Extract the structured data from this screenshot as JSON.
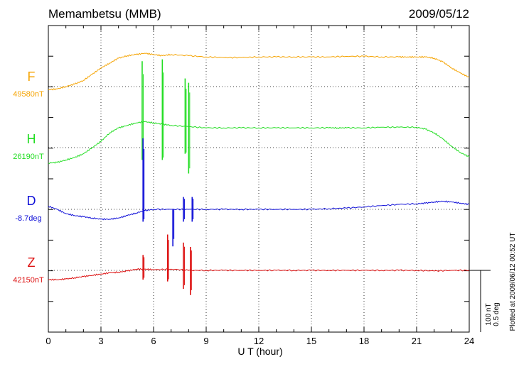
{
  "header": {
    "station": "Memambetsu (MMB)",
    "date": "2009/05/12"
  },
  "footer": {
    "plotted_at": "Plotted at 2009/06/12 00:52 UT",
    "scale_nT": "100 nT",
    "scale_deg": "0.5 deg"
  },
  "chart_data": {
    "type": "line",
    "title": "Memambetsu (MMB)",
    "date": "2009/05/12",
    "xlabel": "U T (hour)",
    "xlim": [
      0,
      24
    ],
    "xticks": [
      "0",
      "3",
      "6",
      "9",
      "12",
      "15",
      "18",
      "21",
      "24"
    ],
    "grid": true,
    "scale_bar": {
      "nT": 100,
      "deg": 0.5
    },
    "series": [
      {
        "name": "F",
        "baseline_label": "49580nT",
        "color": "#f5a300",
        "unit": "nT",
        "baseline": 49580,
        "x": [
          0,
          0.5,
          1,
          1.5,
          2,
          2.5,
          3,
          3.5,
          4,
          4.5,
          5,
          5.5,
          6,
          6.5,
          7,
          8,
          9,
          10,
          11,
          12,
          13,
          14,
          15,
          16,
          17,
          18,
          19,
          20,
          20.5,
          21,
          21.5,
          22,
          22.5,
          23,
          23.5,
          24
        ],
        "y": [
          -5,
          -4,
          0,
          4,
          10,
          20,
          30,
          38,
          46,
          50,
          52,
          54,
          52,
          50,
          52,
          50,
          48,
          47,
          47,
          48,
          48,
          48,
          48,
          48,
          49,
          49,
          48,
          48,
          48,
          48,
          48,
          46,
          40,
          30,
          22,
          15
        ],
        "spikes": []
      },
      {
        "name": "H",
        "baseline_label": "26190nT",
        "color": "#22dd22",
        "unit": "nT",
        "baseline": 26190,
        "x": [
          0,
          0.5,
          1,
          1.5,
          2,
          2.5,
          3,
          3.5,
          4,
          4.5,
          5,
          5.5,
          6,
          6.5,
          7,
          8,
          9,
          10,
          11,
          12,
          13,
          14,
          15,
          16,
          16.5,
          17,
          18,
          19,
          20,
          21,
          21.5,
          22,
          22.5,
          23,
          23.5,
          24
        ],
        "y": [
          -25,
          -24,
          -20,
          -16,
          -10,
          0,
          10,
          24,
          32,
          36,
          40,
          42,
          40,
          38,
          36,
          34,
          32,
          32,
          32,
          32,
          32,
          32,
          32,
          32,
          32,
          32,
          32,
          33,
          33,
          33,
          30,
          24,
          14,
          2,
          -8,
          -15
        ],
        "spikes": [
          {
            "x": 5.35,
            "hi": 140,
            "lo": -20
          },
          {
            "x": 6.5,
            "hi": 143,
            "lo": -20
          },
          {
            "x": 7.8,
            "hi": 112,
            "lo": -10
          },
          {
            "x": 8.0,
            "hi": 105,
            "lo": -42
          }
        ]
      },
      {
        "name": "D",
        "baseline_label": "-8.7deg",
        "color": "#1010d8",
        "unit": "deg",
        "baseline": -8.7,
        "x": [
          0,
          0.5,
          1,
          1.5,
          2,
          2.5,
          3,
          3.5,
          4,
          4.5,
          5,
          5.5,
          6,
          7,
          8,
          9,
          10,
          11,
          12,
          13,
          14,
          15,
          16,
          17,
          18,
          19,
          20,
          21,
          21.5,
          22,
          22.5,
          23,
          23.5,
          24
        ],
        "y": [
          5,
          0,
          -7,
          -10,
          -12,
          -14,
          -16,
          -16,
          -14,
          -10,
          -6,
          -2,
          0,
          0,
          0,
          0,
          0,
          0,
          0,
          0,
          0,
          0,
          1,
          2,
          4,
          6,
          8,
          9,
          10,
          12,
          13,
          12,
          10,
          8
        ],
        "spikes": [
          {
            "x": 5.4,
            "hi": 115,
            "lo": -20
          },
          {
            "x": 7.1,
            "hi": 0,
            "lo": -60
          },
          {
            "x": 7.7,
            "hi": 20,
            "lo": -20
          },
          {
            "x": 8.2,
            "hi": 20,
            "lo": -20
          }
        ]
      },
      {
        "name": "Z",
        "baseline_label": "42150nT",
        "color": "#dd1111",
        "unit": "nT",
        "baseline": 42150,
        "x": [
          0,
          0.5,
          1,
          1.5,
          2,
          2.5,
          3,
          3.5,
          4,
          4.5,
          5,
          5.5,
          6,
          7,
          8,
          9,
          10,
          11,
          12,
          13,
          14,
          15,
          16,
          17,
          18,
          19,
          20,
          21,
          22,
          23,
          24
        ],
        "y": [
          -15,
          -15,
          -14,
          -12,
          -10,
          -8,
          -6,
          -4,
          -3,
          -1,
          2,
          2,
          1,
          2,
          0,
          0,
          0,
          0,
          0,
          0,
          0,
          0,
          0,
          0,
          0,
          0,
          0,
          0,
          -1,
          0,
          0
        ],
        "spikes": [
          {
            "x": 5.4,
            "hi": 25,
            "lo": -15
          },
          {
            "x": 6.8,
            "hi": 58,
            "lo": -18
          },
          {
            "x": 7.7,
            "hi": 45,
            "lo": -30
          },
          {
            "x": 8.1,
            "hi": 38,
            "lo": -40
          }
        ]
      }
    ]
  }
}
